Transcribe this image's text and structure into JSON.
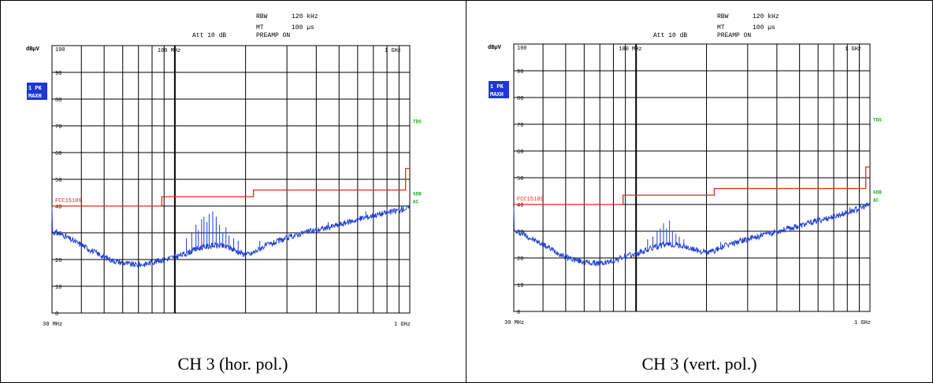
{
  "captions": [
    "CH 3 (hor. pol.)",
    "CH 3 (vert. pol.)"
  ],
  "header": {
    "rbw_label": "RBW",
    "rbw_value": "120 kHz",
    "mt_label": "MT",
    "mt_value": "100 µs",
    "att": "Att 10 dB",
    "preamp": "PREAMP ON"
  },
  "unit": "dBµV",
  "marker": {
    "line1": "1 PK",
    "line2": "MAXH"
  },
  "colors": {
    "trace": "#1d3fd6",
    "limit": "#e02b1a",
    "label_green": "#19b31d",
    "marker_bg": "#1f37d6"
  },
  "chart_data": [
    {
      "type": "line",
      "title": "CH 3 (hor. pol.)",
      "x_scale": "log",
      "xlim_mhz": [
        30,
        1000
      ],
      "ylim": [
        0,
        100
      ],
      "y_ticks": [
        "100",
        "90",
        "80",
        "70",
        "60",
        "50",
        "40",
        "30",
        "20",
        "10",
        "0"
      ],
      "x_tick_labels": {
        "start": "30 MHz",
        "end": "1 GHz",
        "top_mid": "100 MHz",
        "top_end": "1 GHz"
      },
      "limit_label": "FCC15109",
      "right_labels": [
        "TDS",
        "6DB",
        "AC"
      ],
      "limit_line": [
        [
          30,
          40
        ],
        [
          88,
          40
        ],
        [
          88,
          43.5
        ],
        [
          216,
          43.5
        ],
        [
          216,
          46
        ],
        [
          960,
          46
        ],
        [
          960,
          54
        ],
        [
          1000,
          54
        ]
      ],
      "series": [
        {
          "values": [
            [
              30,
              30.5
            ],
            [
              33,
              29.5
            ],
            [
              36,
              27.5
            ],
            [
              40,
              25.5
            ],
            [
              45,
              23
            ],
            [
              50,
              21
            ],
            [
              55,
              19.5
            ],
            [
              60,
              18.8
            ],
            [
              65,
              18.2
            ],
            [
              70,
              18
            ],
            [
              75,
              18.3
            ],
            [
              80,
              19
            ],
            [
              85,
              19.5
            ],
            [
              90,
              20
            ],
            [
              95,
              20.5
            ],
            [
              100,
              21
            ],
            [
              110,
              22
            ],
            [
              120,
              23.5
            ],
            [
              130,
              24.5
            ],
            [
              140,
              25
            ],
            [
              150,
              25.3
            ],
            [
              160,
              25
            ],
            [
              170,
              24.5
            ],
            [
              180,
              23.5
            ],
            [
              190,
              22.5
            ],
            [
              200,
              22
            ],
            [
              210,
              22
            ],
            [
              220,
              23
            ],
            [
              240,
              25
            ],
            [
              260,
              26
            ],
            [
              280,
              27
            ],
            [
              300,
              28
            ],
            [
              350,
              30
            ],
            [
              400,
              31
            ],
            [
              450,
              32
            ],
            [
              500,
              33
            ],
            [
              600,
              35
            ],
            [
              700,
              36.5
            ],
            [
              800,
              37.5
            ],
            [
              900,
              38.5
            ],
            [
              1000,
              39.5
            ]
          ],
          "peaks": [
            [
              112,
              28
            ],
            [
              118,
              30
            ],
            [
              123,
              33
            ],
            [
              126,
              31
            ],
            [
              130,
              35
            ],
            [
              133,
              36
            ],
            [
              137,
              34
            ],
            [
              140,
              37
            ],
            [
              145,
              38
            ],
            [
              150,
              36
            ],
            [
              155,
              33
            ],
            [
              160,
              30
            ],
            [
              165,
              32
            ],
            [
              170,
              29
            ],
            [
              178,
              28
            ],
            [
              186,
              27
            ],
            [
              230,
              27
            ],
            [
              300,
              30
            ],
            [
              450,
              34
            ],
            [
              650,
              38
            ],
            [
              800,
              40
            ]
          ]
        }
      ]
    },
    {
      "type": "line",
      "title": "CH 3 (vert. pol.)",
      "x_scale": "log",
      "xlim_mhz": [
        30,
        1000
      ],
      "ylim": [
        0,
        100
      ],
      "y_ticks": [
        "100",
        "90",
        "80",
        "70",
        "60",
        "50",
        "40",
        "30",
        "20",
        "10",
        "0"
      ],
      "x_tick_labels": {
        "start": "30 MHz",
        "end": "1 GHz",
        "top_mid": "100 MHz",
        "top_end": "1 GHz"
      },
      "limit_label": "FCC15109",
      "right_labels": [
        "TDS",
        "6DB",
        "AC"
      ],
      "limit_line": [
        [
          30,
          40
        ],
        [
          88,
          40
        ],
        [
          88,
          43.5
        ],
        [
          216,
          43.5
        ],
        [
          216,
          46
        ],
        [
          960,
          46
        ],
        [
          960,
          54
        ],
        [
          1000,
          54
        ]
      ],
      "series": [
        {
          "values": [
            [
              30,
              30
            ],
            [
              33,
              29
            ],
            [
              36,
              27
            ],
            [
              40,
              25
            ],
            [
              45,
              22.5
            ],
            [
              50,
              20.5
            ],
            [
              55,
              19.2
            ],
            [
              60,
              18.5
            ],
            [
              65,
              18.1
            ],
            [
              70,
              18
            ],
            [
              75,
              18.3
            ],
            [
              80,
              19
            ],
            [
              85,
              19.8
            ],
            [
              90,
              20.5
            ],
            [
              95,
              21
            ],
            [
              100,
              21.5
            ],
            [
              110,
              22.8
            ],
            [
              120,
              24
            ],
            [
              130,
              24.8
            ],
            [
              140,
              25
            ],
            [
              150,
              24.8
            ],
            [
              160,
              24.3
            ],
            [
              170,
              23.5
            ],
            [
              180,
              23
            ],
            [
              190,
              22.5
            ],
            [
              200,
              22
            ],
            [
              210,
              22.3
            ],
            [
              220,
              23
            ],
            [
              240,
              24.5
            ],
            [
              260,
              25.5
            ],
            [
              280,
              26.5
            ],
            [
              300,
              27
            ],
            [
              350,
              28.5
            ],
            [
              400,
              30
            ],
            [
              450,
              31
            ],
            [
              500,
              32
            ],
            [
              600,
              34
            ],
            [
              700,
              35.5
            ],
            [
              800,
              37
            ],
            [
              900,
              38.5
            ],
            [
              1000,
              40
            ]
          ],
          "peaks": [
            [
              112,
              27
            ],
            [
              118,
              28
            ],
            [
              123,
              30
            ],
            [
              127,
              31
            ],
            [
              131,
              33
            ],
            [
              135,
              31
            ],
            [
              139,
              34
            ],
            [
              143,
              30
            ],
            [
              148,
              29
            ],
            [
              153,
              28
            ],
            [
              160,
              27
            ],
            [
              230,
              26
            ],
            [
              330,
              29
            ],
            [
              500,
              33
            ],
            [
              700,
              37
            ],
            [
              820,
              39
            ]
          ]
        }
      ]
    }
  ]
}
